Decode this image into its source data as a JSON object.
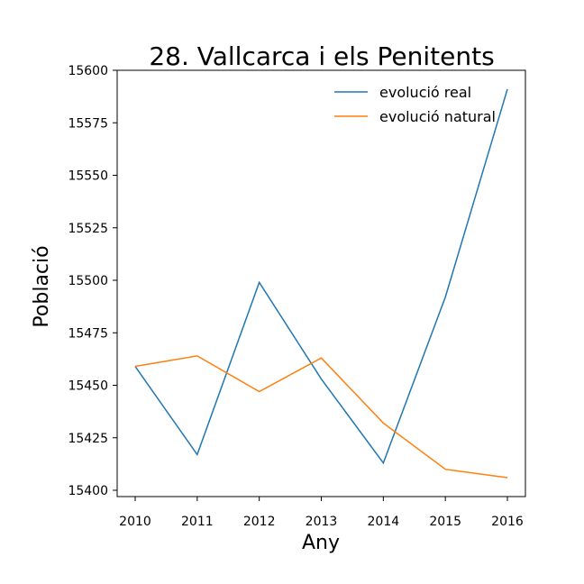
{
  "chart_data": {
    "type": "line",
    "title": "28. Vallcarca i els Penitents",
    "xlabel": "Any",
    "ylabel": "Població",
    "x": [
      2010,
      2011,
      2012,
      2013,
      2014,
      2015,
      2016
    ],
    "xticks": [
      "2010",
      "2011",
      "2012",
      "2013",
      "2014",
      "2015",
      "2016"
    ],
    "ylim": [
      15397,
      15600
    ],
    "yticks": [
      "15400",
      "15425",
      "15450",
      "15475",
      "15500",
      "15525",
      "15550",
      "15575",
      "15600"
    ],
    "grid": false,
    "legend_position": "top-right",
    "series": [
      {
        "name": "evolució real",
        "color": "#1f77b4",
        "values": [
          15459,
          15417,
          15499,
          15453,
          15413,
          15492,
          15591
        ]
      },
      {
        "name": "evolució natural",
        "color": "#ff7f0e",
        "values": [
          15459,
          15464,
          15447,
          15463,
          15432,
          15410,
          15406
        ]
      }
    ]
  }
}
